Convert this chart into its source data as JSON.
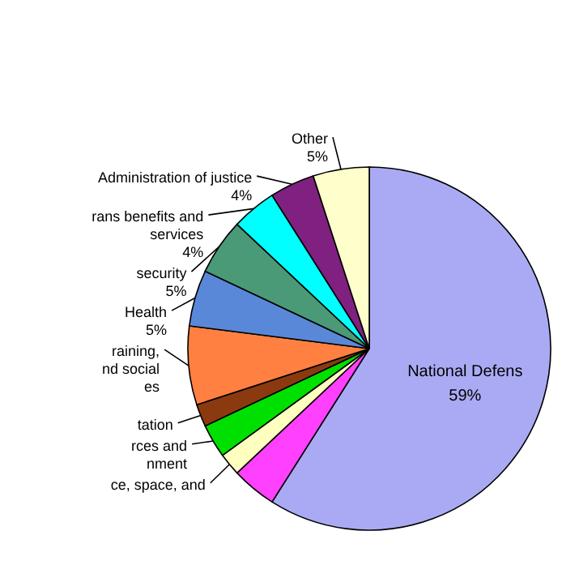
{
  "chart_data": {
    "type": "pie",
    "categories": [
      "National Defens",
      null,
      "ce, space, and",
      "rces and\nnment",
      "tation",
      "raining,\nnd social\nes",
      "Health",
      "security",
      "rans benefits and\nservices",
      "Administration of justice",
      "Other"
    ],
    "values": [
      59,
      4,
      2,
      3,
      2,
      7,
      5,
      5,
      4,
      4,
      5
    ],
    "value_labels": [
      "59%",
      null,
      null,
      null,
      null,
      null,
      "5%",
      "5%",
      "4%",
      "4%",
      "5%"
    ],
    "colors": [
      "#aaaaf4",
      "#ff40ff",
      "#ffffc0",
      "#00e000",
      "#8b3a10",
      "#ff8040",
      "#5a88d8",
      "#4a9a78",
      "#00ffff",
      "#802080",
      "#ffffcc"
    ]
  }
}
